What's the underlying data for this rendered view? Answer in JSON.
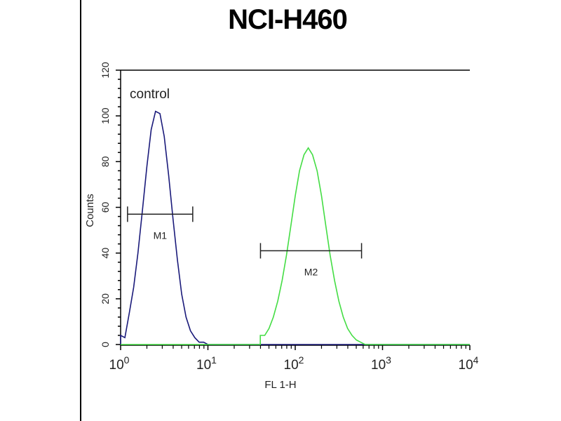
{
  "chart_data": {
    "type": "line",
    "title": "NCI-H460",
    "xlabel": "FL 1-H",
    "ylabel": "Counts",
    "x_scale": "log",
    "xlim": [
      1,
      10000
    ],
    "ylim": [
      0,
      120
    ],
    "x_ticks": [
      {
        "base": "10",
        "exp": "0"
      },
      {
        "base": "10",
        "exp": "1"
      },
      {
        "base": "10",
        "exp": "2"
      },
      {
        "base": "10",
        "exp": "3"
      },
      {
        "base": "10",
        "exp": "4"
      }
    ],
    "y_ticks": [
      "0",
      "20",
      "40",
      "60",
      "80",
      "100",
      "120"
    ],
    "grid": false,
    "annotations": [
      {
        "text": "control"
      }
    ],
    "series": [
      {
        "name": "control",
        "color": "#1a1a7a",
        "x": [
          1,
          1.12,
          1.26,
          1.41,
          1.58,
          1.78,
          2.0,
          2.24,
          2.51,
          2.82,
          3.16,
          3.55,
          3.98,
          4.47,
          5.01,
          5.62,
          6.31,
          7.08,
          7.94,
          8.91,
          10
        ],
        "y": [
          4,
          3,
          14,
          25,
          40,
          59,
          78,
          94,
          102,
          101,
          91,
          74,
          55,
          37,
          22,
          12,
          6,
          3,
          1,
          1,
          0
        ]
      },
      {
        "color": "#44dd44",
        "x": [
          39.8,
          44.7,
          50.1,
          56.2,
          63.1,
          70.8,
          79.4,
          89.1,
          100,
          112,
          126,
          141,
          158,
          178,
          200,
          224,
          251,
          282,
          316,
          355,
          398,
          447,
          501,
          562,
          631
        ],
        "y": [
          4,
          4,
          7,
          12,
          19,
          28,
          39,
          52,
          65,
          76,
          83,
          86,
          83,
          76,
          65,
          52,
          39,
          28,
          19,
          12,
          7,
          4,
          2,
          1,
          0
        ]
      }
    ],
    "markers": [
      {
        "label": "M1",
        "x_range": [
          1.2,
          6.7
        ],
        "y": 57
      },
      {
        "label": "M2",
        "x_range": [
          40,
          575
        ],
        "y": 41
      }
    ]
  }
}
